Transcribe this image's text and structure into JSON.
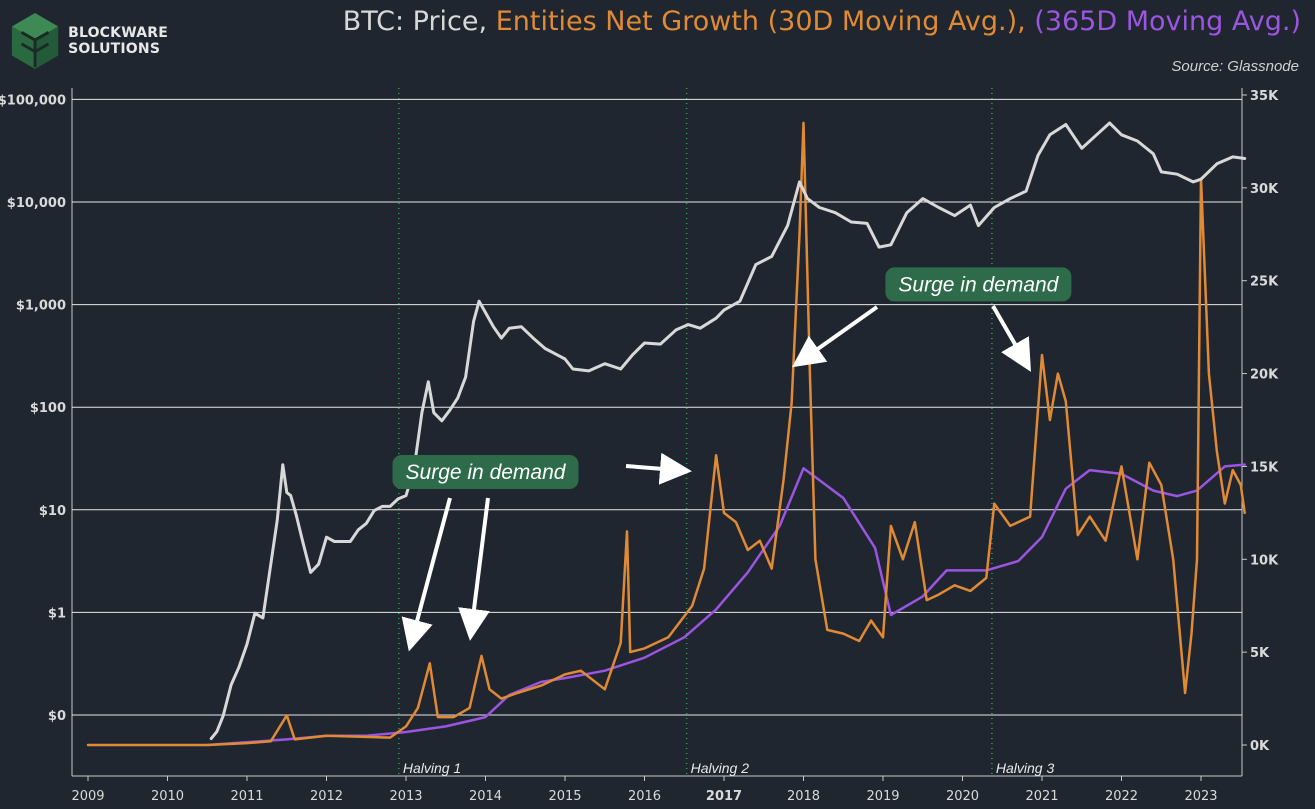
{
  "logo": {
    "line1": "BLOCKWARE",
    "line2": "SOLUTIONS",
    "icon": "blockware-cube-logo"
  },
  "title": {
    "price": "BTC: Price,",
    "growth": "Entities Net Growth (30D Moving Avg.),",
    "ma": "(365D Moving Avg.)"
  },
  "source": "Source: Glassnode",
  "colors": {
    "background": "#20262f",
    "price": "#d8d8d8",
    "growth": "#e08a35",
    "ma": "#9b55e0",
    "halving": "#2fa14f",
    "callout_bg": "#2e6b4a"
  },
  "chart_data": {
    "type": "line",
    "x_ticks": [
      "2009",
      "2010",
      "2011",
      "2012",
      "2013",
      "2014",
      "2015",
      "2016",
      "2017",
      "2018",
      "2019",
      "2020",
      "2021",
      "2022",
      "2023"
    ],
    "y_left_ticks": [
      "$0",
      "$1",
      "$10",
      "$100",
      "$1,000",
      "$10,000",
      "$100,000"
    ],
    "y_left_scale": "log",
    "y_right_ticks": [
      "0K",
      "5K",
      "10K",
      "15K",
      "20K",
      "25K",
      "30K",
      "35K"
    ],
    "y_right_range": [
      0,
      35000
    ],
    "grid": "horizontal",
    "halvings": [
      {
        "x": 2012.91,
        "label": "Halving 1"
      },
      {
        "x": 2016.53,
        "label": "Halving 2"
      },
      {
        "x": 2020.37,
        "label": "Halving 3"
      }
    ],
    "callouts": [
      {
        "text": "Surge in demand",
        "x": 2014.0,
        "y": 14700
      },
      {
        "text": "Surge in demand",
        "x": 2020.2,
        "y": 24800
      }
    ],
    "series": [
      {
        "name": "BTC: Price",
        "axis": "left",
        "x": [
          2010.55,
          2010.62,
          2010.7,
          2010.8,
          2010.9,
          2011.0,
          2011.1,
          2011.2,
          2011.3,
          2011.38,
          2011.45,
          2011.5,
          2011.55,
          2011.62,
          2011.7,
          2011.8,
          2011.9,
          2012.0,
          2012.1,
          2012.2,
          2012.3,
          2012.4,
          2012.5,
          2012.6,
          2012.7,
          2012.8,
          2012.9,
          2013.0,
          2013.1,
          2013.2,
          2013.28,
          2013.35,
          2013.45,
          2013.55,
          2013.65,
          2013.75,
          2013.85,
          2013.92,
          2014.0,
          2014.1,
          2014.2,
          2014.3,
          2014.45,
          2014.6,
          2014.75,
          2014.9,
          2015.0,
          2015.1,
          2015.3,
          2015.5,
          2015.7,
          2015.85,
          2016.0,
          2016.2,
          2016.4,
          2016.55,
          2016.7,
          2016.9,
          2017.0,
          2017.2,
          2017.4,
          2017.6,
          2017.8,
          2017.95,
          2018.05,
          2018.2,
          2018.4,
          2018.6,
          2018.8,
          2018.95,
          2019.1,
          2019.3,
          2019.5,
          2019.7,
          2019.9,
          2020.1,
          2020.2,
          2020.4,
          2020.6,
          2020.8,
          2020.95,
          2021.1,
          2021.3,
          2021.5,
          2021.7,
          2021.85,
          2022.0,
          2022.2,
          2022.4,
          2022.5,
          2022.7,
          2022.9,
          2023.0,
          2023.2,
          2023.4,
          2023.55
        ],
        "y": [
          0.06,
          0.07,
          0.1,
          0.2,
          0.3,
          0.5,
          1.0,
          0.9,
          3.0,
          8.0,
          28.0,
          15.0,
          14.0,
          9.0,
          5.0,
          2.5,
          3.0,
          5.5,
          5.0,
          5.0,
          5.0,
          6.5,
          7.5,
          10.0,
          11.0,
          11.0,
          13.0,
          14.0,
          25.0,
          90.0,
          180.0,
          90.0,
          75.0,
          95.0,
          125.0,
          200.0,
          700.0,
          1100.0,
          850.0,
          620.0,
          480.0,
          600.0,
          620.0,
          480.0,
          380.0,
          330.0,
          300.0,
          240.0,
          230.0,
          270.0,
          240.0,
          330.0,
          430.0,
          420.0,
          580.0,
          650.0,
          600.0,
          750.0,
          900.0,
          1100.0,
          2500.0,
          3000.0,
          6000.0,
          16000.0,
          11000.0,
          9000.0,
          8000.0,
          6500.0,
          6300.0,
          3700.0,
          3900.0,
          8000.0,
          11000.0,
          9000.0,
          7500.0,
          9500.0,
          6000.0,
          9000.0,
          11000.0,
          13000.0,
          29000.0,
          46000.0,
          58000.0,
          34000.0,
          47000.0,
          60000.0,
          46000.0,
          40000.0,
          30000.0,
          20000.0,
          19000.0,
          16000.0,
          17000.0,
          24000.0,
          28000.0,
          27000.0
        ]
      },
      {
        "name": "Entities Net Growth (30D Moving Avg.)",
        "axis": "right",
        "x": [
          2009.0,
          2010.5,
          2011.0,
          2011.3,
          2011.5,
          2011.6,
          2012.0,
          2012.8,
          2013.0,
          2013.15,
          2013.3,
          2013.4,
          2013.6,
          2013.8,
          2013.95,
          2014.05,
          2014.2,
          2014.4,
          2014.7,
          2015.0,
          2015.2,
          2015.5,
          2015.7,
          2015.78,
          2015.82,
          2016.0,
          2016.3,
          2016.6,
          2016.75,
          2016.9,
          2017.0,
          2017.15,
          2017.3,
          2017.45,
          2017.6,
          2017.75,
          2017.85,
          2017.95,
          2018.0,
          2018.08,
          2018.15,
          2018.3,
          2018.5,
          2018.7,
          2018.85,
          2019.0,
          2019.1,
          2019.25,
          2019.4,
          2019.55,
          2019.7,
          2019.9,
          2020.1,
          2020.3,
          2020.4,
          2020.6,
          2020.85,
          2021.0,
          2021.1,
          2021.2,
          2021.3,
          2021.45,
          2021.6,
          2021.8,
          2022.0,
          2022.2,
          2022.35,
          2022.5,
          2022.65,
          2022.8,
          2022.88,
          2022.95,
          2023.0,
          2023.1,
          2023.2,
          2023.3,
          2023.4,
          2023.5,
          2023.55
        ],
        "y": [
          0,
          0,
          100,
          200,
          1600,
          300,
          500,
          400,
          1000,
          2000,
          4400,
          1500,
          1500,
          2000,
          4800,
          3000,
          2500,
          2800,
          3200,
          3800,
          4000,
          3000,
          5500,
          11500,
          5000,
          5200,
          5800,
          7500,
          9500,
          15600,
          12500,
          12000,
          10500,
          11000,
          9500,
          14300,
          18400,
          27500,
          33500,
          20000,
          10000,
          6200,
          6000,
          5600,
          6700,
          5800,
          11800,
          10000,
          12000,
          7800,
          8100,
          8600,
          8300,
          9000,
          13000,
          11800,
          12300,
          21000,
          17500,
          20000,
          18500,
          11300,
          12300,
          11000,
          15000,
          10000,
          15200,
          14000,
          10000,
          2800,
          6000,
          10000,
          30500,
          20000,
          15800,
          13000,
          14800,
          14000,
          12500
        ]
      },
      {
        "name": "(365D Moving Avg.)",
        "axis": "right",
        "x": [
          2010.5,
          2011.5,
          2012.0,
          2012.5,
          2013.0,
          2013.5,
          2014.0,
          2014.3,
          2014.7,
          2015.0,
          2015.5,
          2016.0,
          2016.5,
          2016.9,
          2017.3,
          2017.7,
          2018.0,
          2018.5,
          2018.9,
          2019.1,
          2019.5,
          2019.8,
          2020.0,
          2020.3,
          2020.7,
          2021.0,
          2021.3,
          2021.6,
          2022.0,
          2022.4,
          2022.7,
          2022.95,
          2023.3,
          2023.55
        ],
        "y": [
          0,
          300,
          500,
          500,
          700,
          1000,
          1500,
          2700,
          3400,
          3600,
          4000,
          4700,
          5800,
          7300,
          9300,
          11800,
          14900,
          13300,
          10600,
          7000,
          8000,
          9400,
          9400,
          9400,
          9900,
          11200,
          13800,
          14800,
          14600,
          13700,
          13400,
          13700,
          15000,
          15100
        ]
      }
    ]
  }
}
